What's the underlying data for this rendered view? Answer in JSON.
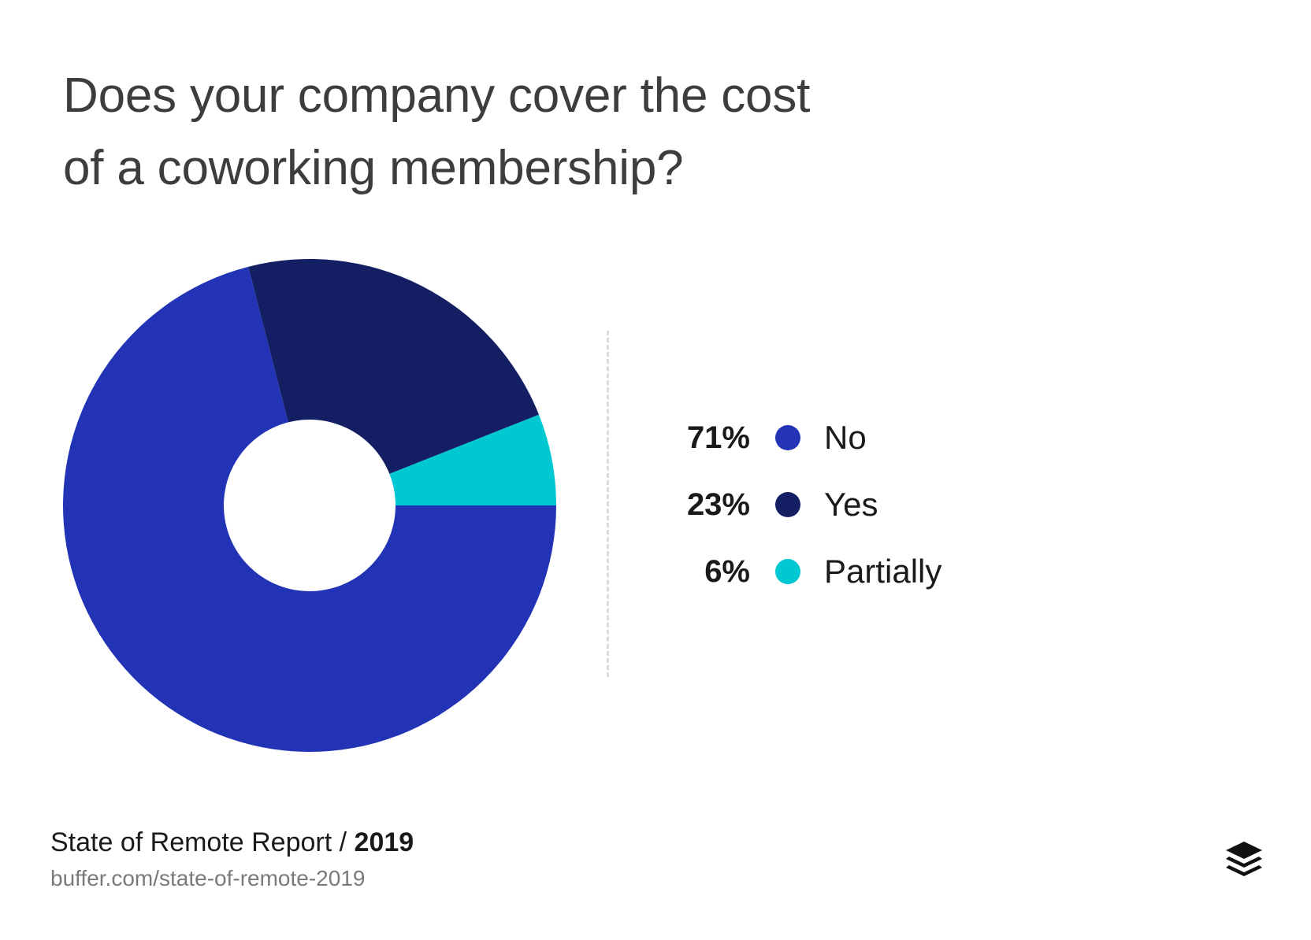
{
  "title_lines": [
    "Does your company cover the cost",
    "of a coworking membership?"
  ],
  "chart_data": {
    "type": "pie",
    "title": "Does your company cover the cost of a coworking membership?",
    "donut": true,
    "categories": [
      "No",
      "Yes",
      "Partially"
    ],
    "values": [
      71,
      23,
      6
    ],
    "value_labels": [
      "71%",
      "23%",
      "6%"
    ],
    "colors": [
      "#2234b5",
      "#141e63",
      "#00c8d2"
    ],
    "legend_position": "right"
  },
  "footer": {
    "report_name": "State of Remote Report / ",
    "report_year": "2019",
    "url": "buffer.com/state-of-remote-2019"
  },
  "logo": {
    "icon": "buffer-stack-icon"
  }
}
